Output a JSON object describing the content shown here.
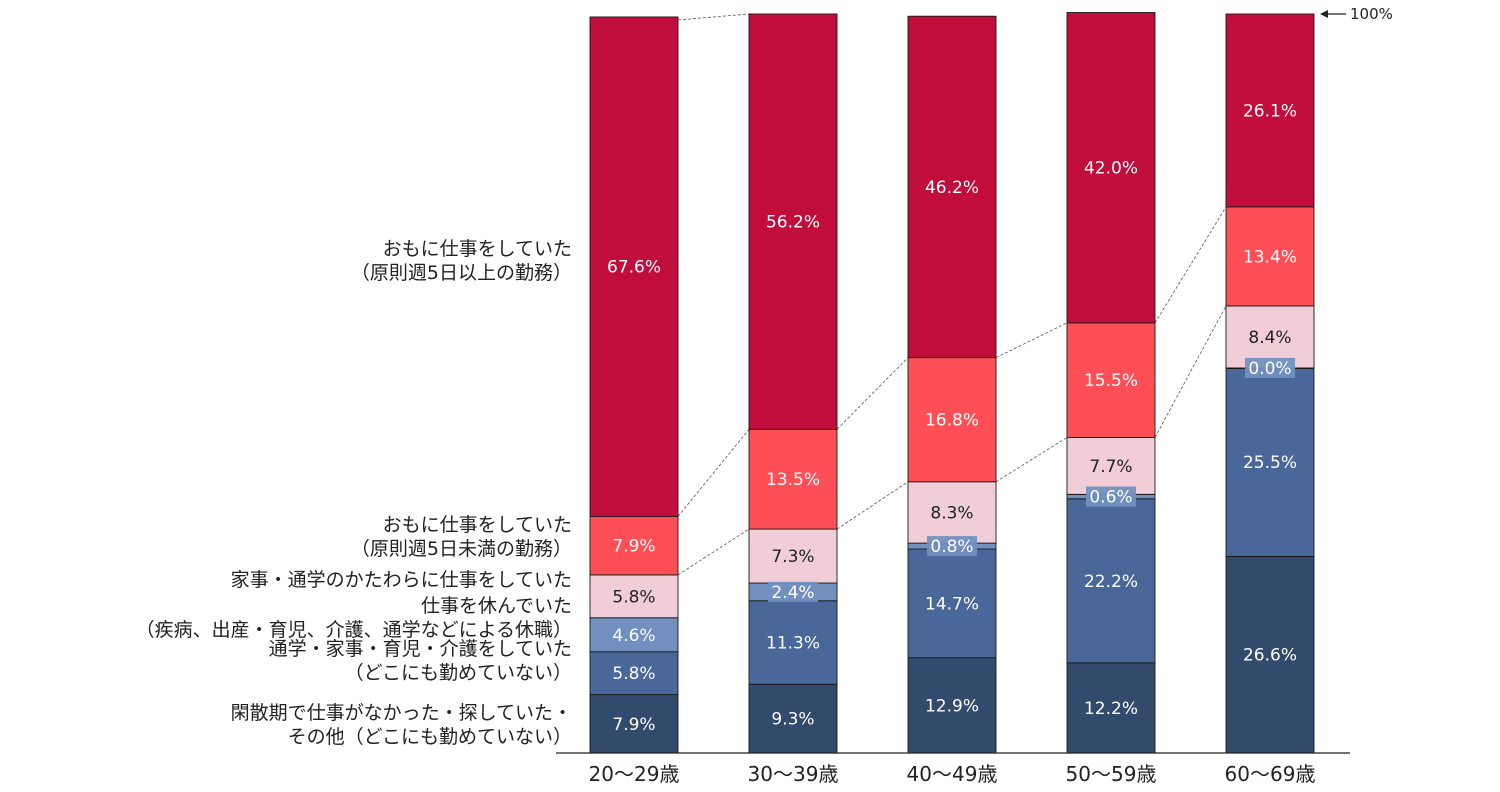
{
  "chart_data": {
    "type": "bar",
    "stacked": true,
    "categories": [
      "20〜29歳",
      "30〜39歳",
      "40〜49歳",
      "50〜59歳",
      "60〜69歳"
    ],
    "series": [
      {
        "name": "閑散期で仕事がなかった・探していた・その他（どこにも勤めていない）",
        "legend_lines": [
          "閑散期で仕事がなかった・探していた・",
          "その他（どこにも勤めていない）"
        ],
        "color": "#324b6d",
        "label_color": "#ffffff",
        "values": [
          7.9,
          9.3,
          12.9,
          12.2,
          26.6
        ],
        "labels": [
          "7.9%",
          "9.3%",
          "12.9%",
          "12.2%",
          "26.6%"
        ]
      },
      {
        "name": "通学・家事・育児・介護をしていた（どこにも勤めていない）",
        "legend_lines": [
          "通学・家事・育児・介護をしていた",
          "（どこにも勤めていない）"
        ],
        "color": "#4a6799",
        "label_color": "#ffffff",
        "values": [
          5.8,
          11.3,
          14.7,
          22.2,
          25.5
        ],
        "labels": [
          "5.8%",
          "11.3%",
          "14.7%",
          "22.2%",
          "25.5%"
        ]
      },
      {
        "name": "仕事を休んでいた（疾病、出産・育児、介護、通学などによる休職）",
        "legend_lines": [
          "仕事を休んでいた",
          "（疾病、出産・育児、介護、通学などによる休職）"
        ],
        "color": "#7190bf",
        "label_color": "#ffffff",
        "values": [
          4.6,
          2.4,
          0.8,
          0.6,
          0.0
        ],
        "labels": [
          "4.6%",
          "2.4%",
          "0.8%",
          "0.6%",
          "0.0%"
        ]
      },
      {
        "name": "家事・通学のかたわらに仕事をしていた",
        "legend_lines": [
          "家事・通学のかたわらに仕事をしていた"
        ],
        "color": "#f1cdd8",
        "label_color": "#222222",
        "values": [
          5.8,
          7.3,
          8.3,
          7.7,
          8.4
        ],
        "labels": [
          "5.8%",
          "7.3%",
          "8.3%",
          "7.7%",
          "8.4%"
        ]
      },
      {
        "name": "おもに仕事をしていた（原則週5日未満の勤務）",
        "legend_lines": [
          "おもに仕事をしていた",
          "（原則週5日未満の勤務）"
        ],
        "color": "#fe4f57",
        "label_color": "#ffffff",
        "values": [
          7.9,
          13.5,
          16.8,
          15.5,
          13.4
        ],
        "labels": [
          "7.9%",
          "13.5%",
          "16.8%",
          "15.5%",
          "13.4%"
        ]
      },
      {
        "name": "おもに仕事をしていた（原則週5日以上の勤務）",
        "legend_lines": [
          "おもに仕事をしていた",
          "（原則週5日以上の勤務）"
        ],
        "color": "#c00d3c",
        "label_color": "#ffffff",
        "values": [
          67.6,
          56.2,
          46.2,
          42.0,
          26.1
        ],
        "labels": [
          "67.6%",
          "56.2%",
          "46.2%",
          "42.0%",
          "26.1%"
        ]
      }
    ],
    "ylim": [
      0,
      100
    ],
    "annotation": "100%",
    "connector_lines": true,
    "grid": false,
    "legend_placement": "left"
  }
}
